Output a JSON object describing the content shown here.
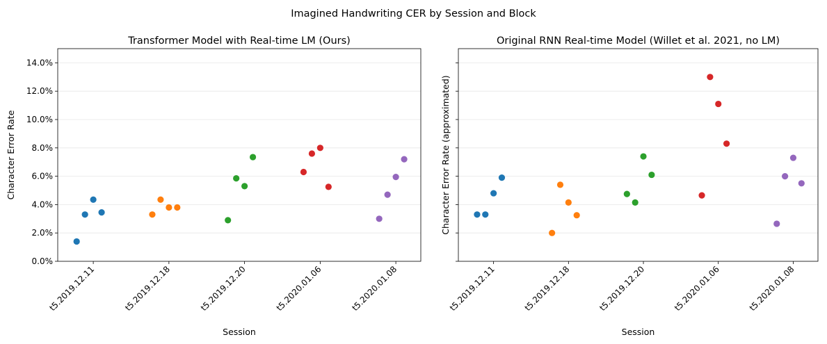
{
  "suptitle": "Imagined Handwriting CER by Session and Block",
  "chart_data": [
    {
      "type": "scatter",
      "title": "Transformer Model with Real-time LM (Ours)",
      "xlabel": "Session",
      "ylabel": "Character Error Rate",
      "categories": [
        "t5.2019.12.11",
        "t5.2019.12.18",
        "t5.2019.12.20",
        "t5.2020.01.06",
        "t5.2020.01.08"
      ],
      "ylim": [
        0,
        0.15
      ],
      "yticks": [
        0,
        0.02,
        0.04,
        0.06,
        0.08,
        0.1,
        0.12,
        0.14
      ],
      "ytick_labels": [
        "0.0%",
        "2.0%",
        "4.0%",
        "6.0%",
        "8.0%",
        "10.0%",
        "12.0%",
        "14.0%"
      ],
      "grid": "horizontal",
      "series": [
        {
          "category": "t5.2019.12.11",
          "color": "#1f77b4",
          "values": [
            0.014,
            0.033,
            0.0435,
            0.0345
          ]
        },
        {
          "category": "t5.2019.12.18",
          "color": "#ff7f0e",
          "values": [
            0.033,
            0.0435,
            0.038,
            0.038
          ]
        },
        {
          "category": "t5.2019.12.20",
          "color": "#2ca02c",
          "values": [
            0.029,
            0.0585,
            0.053,
            0.0735
          ]
        },
        {
          "category": "t5.2020.01.06",
          "color": "#d62728",
          "values": [
            0.063,
            0.076,
            0.08,
            0.0525
          ]
        },
        {
          "category": "t5.2020.01.08",
          "color": "#9467bd",
          "values": [
            0.03,
            0.047,
            0.0595,
            0.072
          ]
        }
      ]
    },
    {
      "type": "scatter",
      "title": "Original RNN Real-time Model (Willet et al. 2021, no LM)",
      "xlabel": "Session",
      "ylabel": "Character Error Rate (approximated)",
      "categories": [
        "t5.2019.12.11",
        "t5.2019.12.18",
        "t5.2019.12.20",
        "t5.2020.01.06",
        "t5.2020.01.08"
      ],
      "ylim": [
        0,
        0.15
      ],
      "yticks": [
        0,
        0.02,
        0.04,
        0.06,
        0.08,
        0.1,
        0.12,
        0.14
      ],
      "ytick_labels": [],
      "grid": "horizontal",
      "series": [
        {
          "category": "t5.2019.12.11",
          "color": "#1f77b4",
          "values": [
            0.033,
            0.033,
            0.048,
            0.059
          ]
        },
        {
          "category": "t5.2019.12.18",
          "color": "#ff7f0e",
          "values": [
            0.02,
            0.054,
            0.0415,
            0.0325
          ]
        },
        {
          "category": "t5.2019.12.20",
          "color": "#2ca02c",
          "values": [
            0.0475,
            0.0415,
            0.074,
            0.061
          ]
        },
        {
          "category": "t5.2020.01.06",
          "color": "#d62728",
          "values": [
            0.0465,
            0.13,
            0.111,
            0.083
          ]
        },
        {
          "category": "t5.2020.01.08",
          "color": "#9467bd",
          "values": [
            0.0265,
            0.06,
            0.073,
            0.055
          ]
        }
      ]
    }
  ]
}
